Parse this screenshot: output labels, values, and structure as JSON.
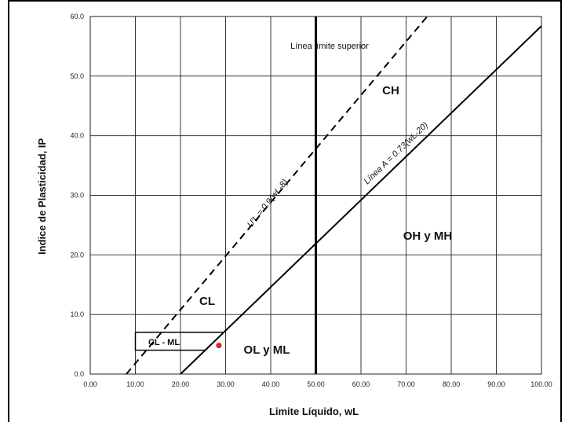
{
  "chart_data": {
    "type": "line",
    "xlabel": "Limite Líquido, wL",
    "ylabel": "Indice de Plasticidad, IP",
    "xlim": [
      0,
      100
    ],
    "ylim": [
      0,
      60
    ],
    "grid": true,
    "x_ticks": [
      "0.00",
      "10.00",
      "20.00",
      "30.00",
      "40.00",
      "50.00",
      "60.00",
      "70.00",
      "80.00",
      "90.00",
      "100.00"
    ],
    "y_ticks": [
      "0.0",
      "10.0",
      "20.0",
      "30.0",
      "40.0",
      "50.0",
      "60.0"
    ],
    "series": [
      {
        "style": "dashed",
        "x": [
          8,
          74.67
        ],
        "y": [
          0,
          60
        ]
      },
      {
        "style": "solid",
        "x": [
          20,
          100
        ],
        "y": [
          0,
          58.4
        ]
      },
      {
        "style": "solid-thick",
        "x": [
          50,
          50
        ],
        "y": [
          0,
          60
        ]
      }
    ],
    "cl_ml_band": {
      "x_start": 10,
      "y": [
        4,
        7
      ]
    },
    "point": {
      "x": 28.5,
      "y": 4.8,
      "color": "#e02020"
    },
    "annotations": {
      "ll_upper": "Línea límite superior",
      "u_line": "U'L = 0.9(wL-8)",
      "a_line": "Línea A = 0.73(wL-20)",
      "ch": "CH",
      "cl": "CL",
      "cl_ml": "CL - ML",
      "oh_mh": "OH y MH",
      "ol_ml": "OL y ML"
    }
  }
}
